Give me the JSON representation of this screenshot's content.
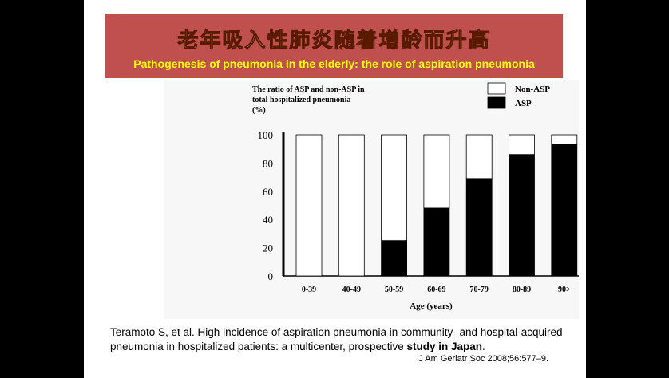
{
  "banner": {
    "title_zh": "老年吸入性肺炎随着增龄而升高",
    "subtitle_en": "Pathogenesis of pneumonia in the elderly: the role of aspiration pneumonia",
    "bg_color": "#c0504d",
    "text_color": "#ffff00"
  },
  "chart_data": {
    "type": "bar",
    "stacked": true,
    "ylabel_lines": [
      "The ratio of ASP and non-ASP in",
      "total hospitalized pneumonia",
      "(%)"
    ],
    "xlabel": "Age (years)",
    "categories": [
      "0-39",
      "40-49",
      "50-59",
      "60-69",
      "70-79",
      "80-89",
      "90>"
    ],
    "series": [
      {
        "name": "ASP",
        "color": "#000000",
        "values": [
          0,
          0,
          25,
          48,
          69,
          86,
          93
        ]
      },
      {
        "name": "Non-ASP",
        "color": "#ffffff",
        "values": [
          100,
          100,
          75,
          52,
          31,
          14,
          7
        ]
      }
    ],
    "yticks": [
      0,
      20,
      40,
      60,
      80,
      100
    ],
    "ylim": [
      0,
      100
    ],
    "legend_position": "top-right",
    "legend": [
      "Non-ASP",
      "ASP"
    ],
    "grid": false
  },
  "citation": {
    "line_pre": "Teramoto S, et al. High incidence of aspiration pneumonia in community- and hospital-acquired pneumonia in hospitalized patients: a multicenter, prospective ",
    "line_bold": "study in Japan",
    "line_post": ".",
    "journal": "J Am Geriatr Soc 2008;56:577–9."
  }
}
